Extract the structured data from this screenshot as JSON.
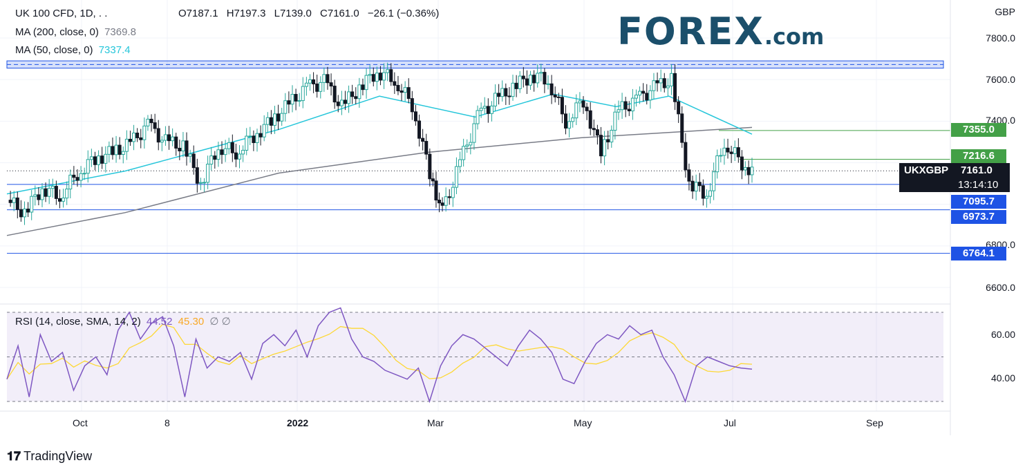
{
  "legend": {
    "symbol": "UK 100 CFD, 1D, . .",
    "open": "O7187.1",
    "high": "H7197.3",
    "low": "L7139.0",
    "close": "C7161.0",
    "change": "−26.1 (−0.36%)",
    "ma200_label": "MA (200, close, 0)",
    "ma200_value": "7369.8",
    "ma50_label": "MA (50, close, 0)",
    "ma50_value": "7337.4",
    "rsi_label": "RSI (14, close, SMA, 14, 2)",
    "rsi_value": "44.52",
    "rsi_sma_value": "45.30",
    "rsi_extra": "∅ ∅"
  },
  "currency": "GBP",
  "last_tag": {
    "symbol": "UKXGBP",
    "price": "7161.0",
    "timer": "13:14:10"
  },
  "logo": {
    "main": "FOREX",
    "suffix": ".com"
  },
  "tradingview": "TradingView",
  "price_axis": [
    "7800.0",
    "7600.0",
    "7400.0",
    "6800.0",
    "6600.0"
  ],
  "rsi_axis": [
    "60.00",
    "40.00"
  ],
  "x_axis": [
    "Oct",
    "8",
    "2022",
    "Mar",
    "May",
    "Jul",
    "Sep"
  ],
  "levels": [
    {
      "value": "7355.0",
      "color": "#43a047"
    },
    {
      "value": "7216.6",
      "color": "#43a047"
    },
    {
      "value": "7095.7",
      "color": "#1e53e5"
    },
    {
      "value": "6973.7",
      "color": "#1e53e5"
    },
    {
      "value": "6764.1",
      "color": "#1e53e5"
    }
  ],
  "colors": {
    "up": "#26a69a",
    "down": "#131722",
    "ma50": "#26c6da",
    "ma200": "#787b86",
    "rsi": "#7e57c2",
    "rsi_sma": "#fdd835",
    "resistance": "#1e53e5",
    "support_green": "#43a047"
  },
  "chart_data": {
    "type": "candlestick",
    "title": "UK 100 CFD, 1D",
    "currency": "GBP",
    "ylim": [
      6500,
      7900
    ],
    "resistance_zone": [
      7655,
      7690
    ],
    "horizontal_levels": [
      7355.0,
      7216.6,
      7095.7,
      6973.7,
      6764.1
    ],
    "last_price": 7161.0,
    "series": [
      {
        "name": "UK 100 CFD",
        "close_path": [
          {
            "x": "2021-09-15",
            "y": 7020
          },
          {
            "x": "2021-09-22",
            "y": 6960
          },
          {
            "x": "2021-09-29",
            "y": 7080
          },
          {
            "x": "2021-10-06",
            "y": 7040
          },
          {
            "x": "2021-10-13",
            "y": 7150
          },
          {
            "x": "2021-10-20",
            "y": 7220
          },
          {
            "x": "2021-10-27",
            "y": 7250
          },
          {
            "x": "2021-11-03",
            "y": 7290
          },
          {
            "x": "2021-11-10",
            "y": 7380
          },
          {
            "x": "2021-11-17",
            "y": 7300
          },
          {
            "x": "2021-11-24",
            "y": 7280
          },
          {
            "x": "2021-12-01",
            "y": 7100
          },
          {
            "x": "2021-12-08",
            "y": 7280
          },
          {
            "x": "2021-12-15",
            "y": 7250
          },
          {
            "x": "2021-12-22",
            "y": 7330
          },
          {
            "x": "2021-12-29",
            "y": 7400
          },
          {
            "x": "2022-01-05",
            "y": 7480
          },
          {
            "x": "2022-01-12",
            "y": 7560
          },
          {
            "x": "2022-01-19",
            "y": 7590
          },
          {
            "x": "2022-01-26",
            "y": 7470
          },
          {
            "x": "2022-02-02",
            "y": 7560
          },
          {
            "x": "2022-02-09",
            "y": 7640
          },
          {
            "x": "2022-02-16",
            "y": 7600
          },
          {
            "x": "2022-02-23",
            "y": 7480
          },
          {
            "x": "2022-03-02",
            "y": 7150
          },
          {
            "x": "2022-03-07",
            "y": 6960
          },
          {
            "x": "2022-03-14",
            "y": 7200
          },
          {
            "x": "2022-03-21",
            "y": 7420
          },
          {
            "x": "2022-03-28",
            "y": 7500
          },
          {
            "x": "2022-04-04",
            "y": 7560
          },
          {
            "x": "2022-04-11",
            "y": 7620
          },
          {
            "x": "2022-04-18",
            "y": 7600
          },
          {
            "x": "2022-04-25",
            "y": 7400
          },
          {
            "x": "2022-05-02",
            "y": 7500
          },
          {
            "x": "2022-05-09",
            "y": 7250
          },
          {
            "x": "2022-05-16",
            "y": 7450
          },
          {
            "x": "2022-05-23",
            "y": 7500
          },
          {
            "x": "2022-05-30",
            "y": 7560
          },
          {
            "x": "2022-06-06",
            "y": 7600
          },
          {
            "x": "2022-06-13",
            "y": 7100
          },
          {
            "x": "2022-06-20",
            "y": 7050
          },
          {
            "x": "2022-06-27",
            "y": 7300
          },
          {
            "x": "2022-07-04",
            "y": 7200
          },
          {
            "x": "2022-07-08",
            "y": 7161
          }
        ]
      },
      {
        "name": "MA (200, close, 0)",
        "points": [
          {
            "x": "2021-09-15",
            "y": 6850
          },
          {
            "x": "2021-11-01",
            "y": 6960
          },
          {
            "x": "2022-01-01",
            "y": 7150
          },
          {
            "x": "2022-03-01",
            "y": 7250
          },
          {
            "x": "2022-05-01",
            "y": 7320
          },
          {
            "x": "2022-07-08",
            "y": 7369.8
          }
        ]
      },
      {
        "name": "MA (50, close, 0)",
        "points": [
          {
            "x": "2021-09-15",
            "y": 7050
          },
          {
            "x": "2021-11-01",
            "y": 7160
          },
          {
            "x": "2022-01-01",
            "y": 7360
          },
          {
            "x": "2022-02-10",
            "y": 7520
          },
          {
            "x": "2022-03-20",
            "y": 7420
          },
          {
            "x": "2022-04-20",
            "y": 7530
          },
          {
            "x": "2022-05-15",
            "y": 7470
          },
          {
            "x": "2022-06-05",
            "y": 7520
          },
          {
            "x": "2022-07-08",
            "y": 7337.4
          }
        ]
      }
    ],
    "rsi": {
      "ylim": [
        25,
        75
      ],
      "bands": [
        30,
        50,
        70
      ],
      "points": [
        40,
        55,
        32,
        60,
        48,
        52,
        35,
        46,
        50,
        42,
        62,
        70,
        58,
        65,
        68,
        55,
        32,
        58,
        45,
        50,
        48,
        52,
        40,
        56,
        60,
        55,
        62,
        50,
        64,
        70,
        72,
        58,
        50,
        48,
        44,
        42,
        40,
        45,
        30,
        46,
        55,
        60,
        58,
        54,
        50,
        46,
        55,
        62,
        58,
        52,
        40,
        38,
        48,
        56,
        60,
        58,
        64,
        60,
        62,
        50,
        42,
        30,
        46,
        50,
        48,
        46,
        45,
        44.5
      ]
    }
  }
}
